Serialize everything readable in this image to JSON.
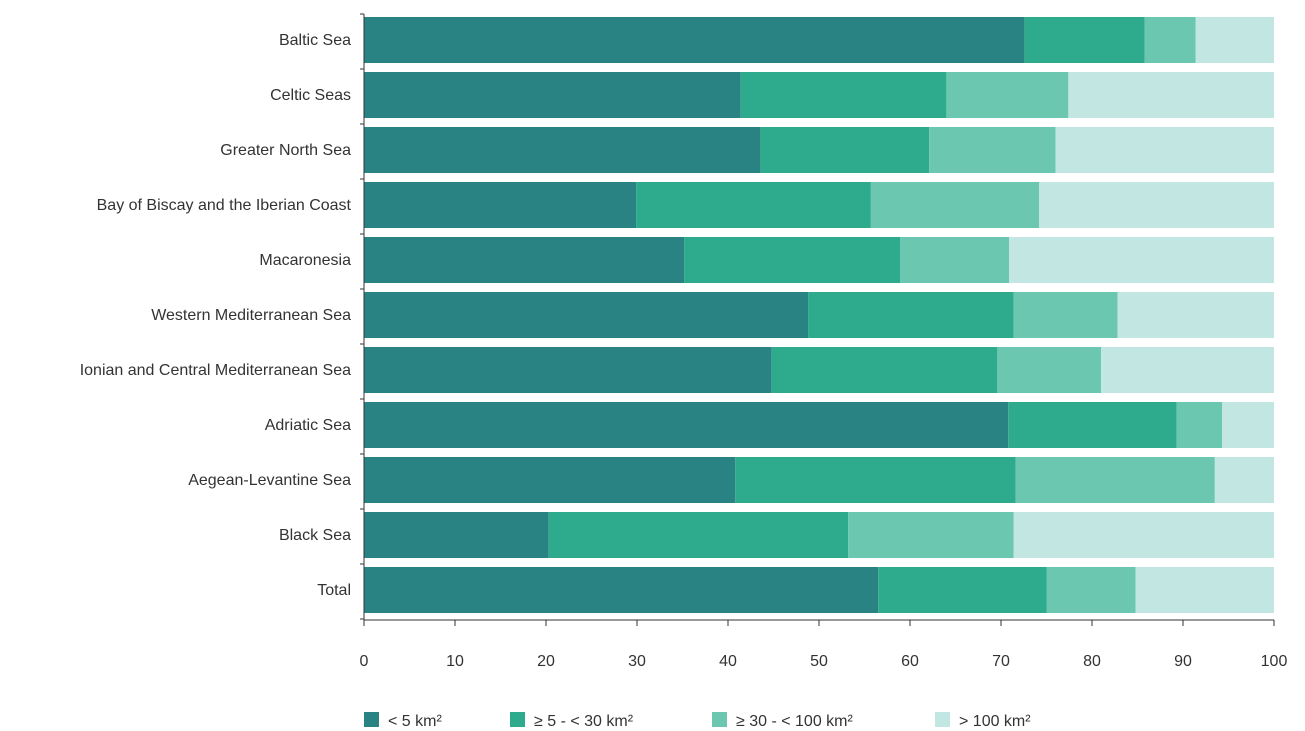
{
  "chart_data": {
    "type": "bar",
    "orientation": "horizontal",
    "stacked": true,
    "categories": [
      "Baltic Sea",
      "Celtic Seas",
      "Greater North Sea",
      "Bay of Biscay and the Iberian Coast",
      "Macaronesia",
      "Western Mediterranean Sea",
      "Ionian and Central Mediterranean Sea",
      "Adriatic Sea",
      "Aegean-Levantine Sea",
      "Black Sea",
      "Total"
    ],
    "series": [
      {
        "name": "< 5 km²",
        "color": "#2a8383",
        "values": [
          72.6,
          41.4,
          43.6,
          29.9,
          35.2,
          48.8,
          44.8,
          70.8,
          40.8,
          20.3,
          56.5
        ]
      },
      {
        "name": "≥ 5 - < 30 km²",
        "color": "#2dab8c",
        "values": [
          13.2,
          22.6,
          18.5,
          25.8,
          23.7,
          22.6,
          24.8,
          18.5,
          30.8,
          32.9,
          18.5
        ]
      },
      {
        "name": "≥ 30 - < 100 km²",
        "color": "#6bc7b0",
        "values": [
          5.6,
          13.4,
          13.9,
          18.5,
          12.0,
          11.4,
          11.4,
          5.0,
          21.9,
          18.2,
          9.8
        ]
      },
      {
        "name": "> 100 km²",
        "color": "#c2e6e2",
        "values": [
          8.6,
          22.6,
          24.0,
          25.8,
          29.1,
          17.2,
          19.0,
          5.7,
          6.5,
          28.6,
          15.2
        ]
      }
    ],
    "xlim": [
      0,
      100
    ],
    "xticks": [
      "0",
      "10",
      "20",
      "30",
      "40",
      "50",
      "60",
      "70",
      "80",
      "90",
      "100"
    ],
    "legend_position": "bottom",
    "grid": false
  }
}
